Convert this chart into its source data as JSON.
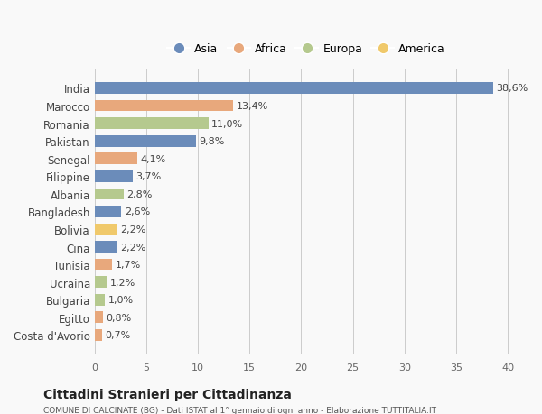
{
  "countries": [
    "India",
    "Marocco",
    "Romania",
    "Pakistan",
    "Senegal",
    "Filippine",
    "Albania",
    "Bangladesh",
    "Bolivia",
    "Cina",
    "Tunisia",
    "Ucraina",
    "Bulgaria",
    "Egitto",
    "Costa d'Avorio"
  ],
  "values": [
    38.6,
    13.4,
    11.0,
    9.8,
    4.1,
    3.7,
    2.8,
    2.6,
    2.2,
    2.2,
    1.7,
    1.2,
    1.0,
    0.8,
    0.7
  ],
  "labels": [
    "38,6%",
    "13,4%",
    "11,0%",
    "9,8%",
    "4,1%",
    "3,7%",
    "2,8%",
    "2,6%",
    "2,2%",
    "2,2%",
    "1,7%",
    "1,2%",
    "1,0%",
    "0,8%",
    "0,7%"
  ],
  "continents": [
    "Asia",
    "Africa",
    "Europa",
    "Asia",
    "Africa",
    "Asia",
    "Europa",
    "Asia",
    "America",
    "Asia",
    "Africa",
    "Europa",
    "Europa",
    "Africa",
    "Africa"
  ],
  "continent_colors": {
    "Asia": "#6b8cba",
    "Africa": "#e8a87c",
    "Europa": "#b5c98e",
    "America": "#f0c96b"
  },
  "legend_order": [
    "Asia",
    "Africa",
    "Europa",
    "America"
  ],
  "title_main": "Cittadini Stranieri per Cittadinanza",
  "title_sub": "COMUNE DI CALCINATE (BG) - Dati ISTAT al 1° gennaio di ogni anno - Elaborazione TUTTITALIA.IT",
  "xlim": [
    0,
    41
  ],
  "xticks": [
    0,
    5,
    10,
    15,
    20,
    25,
    30,
    35,
    40
  ],
  "background_color": "#f9f9f9",
  "grid_color": "#cccccc"
}
